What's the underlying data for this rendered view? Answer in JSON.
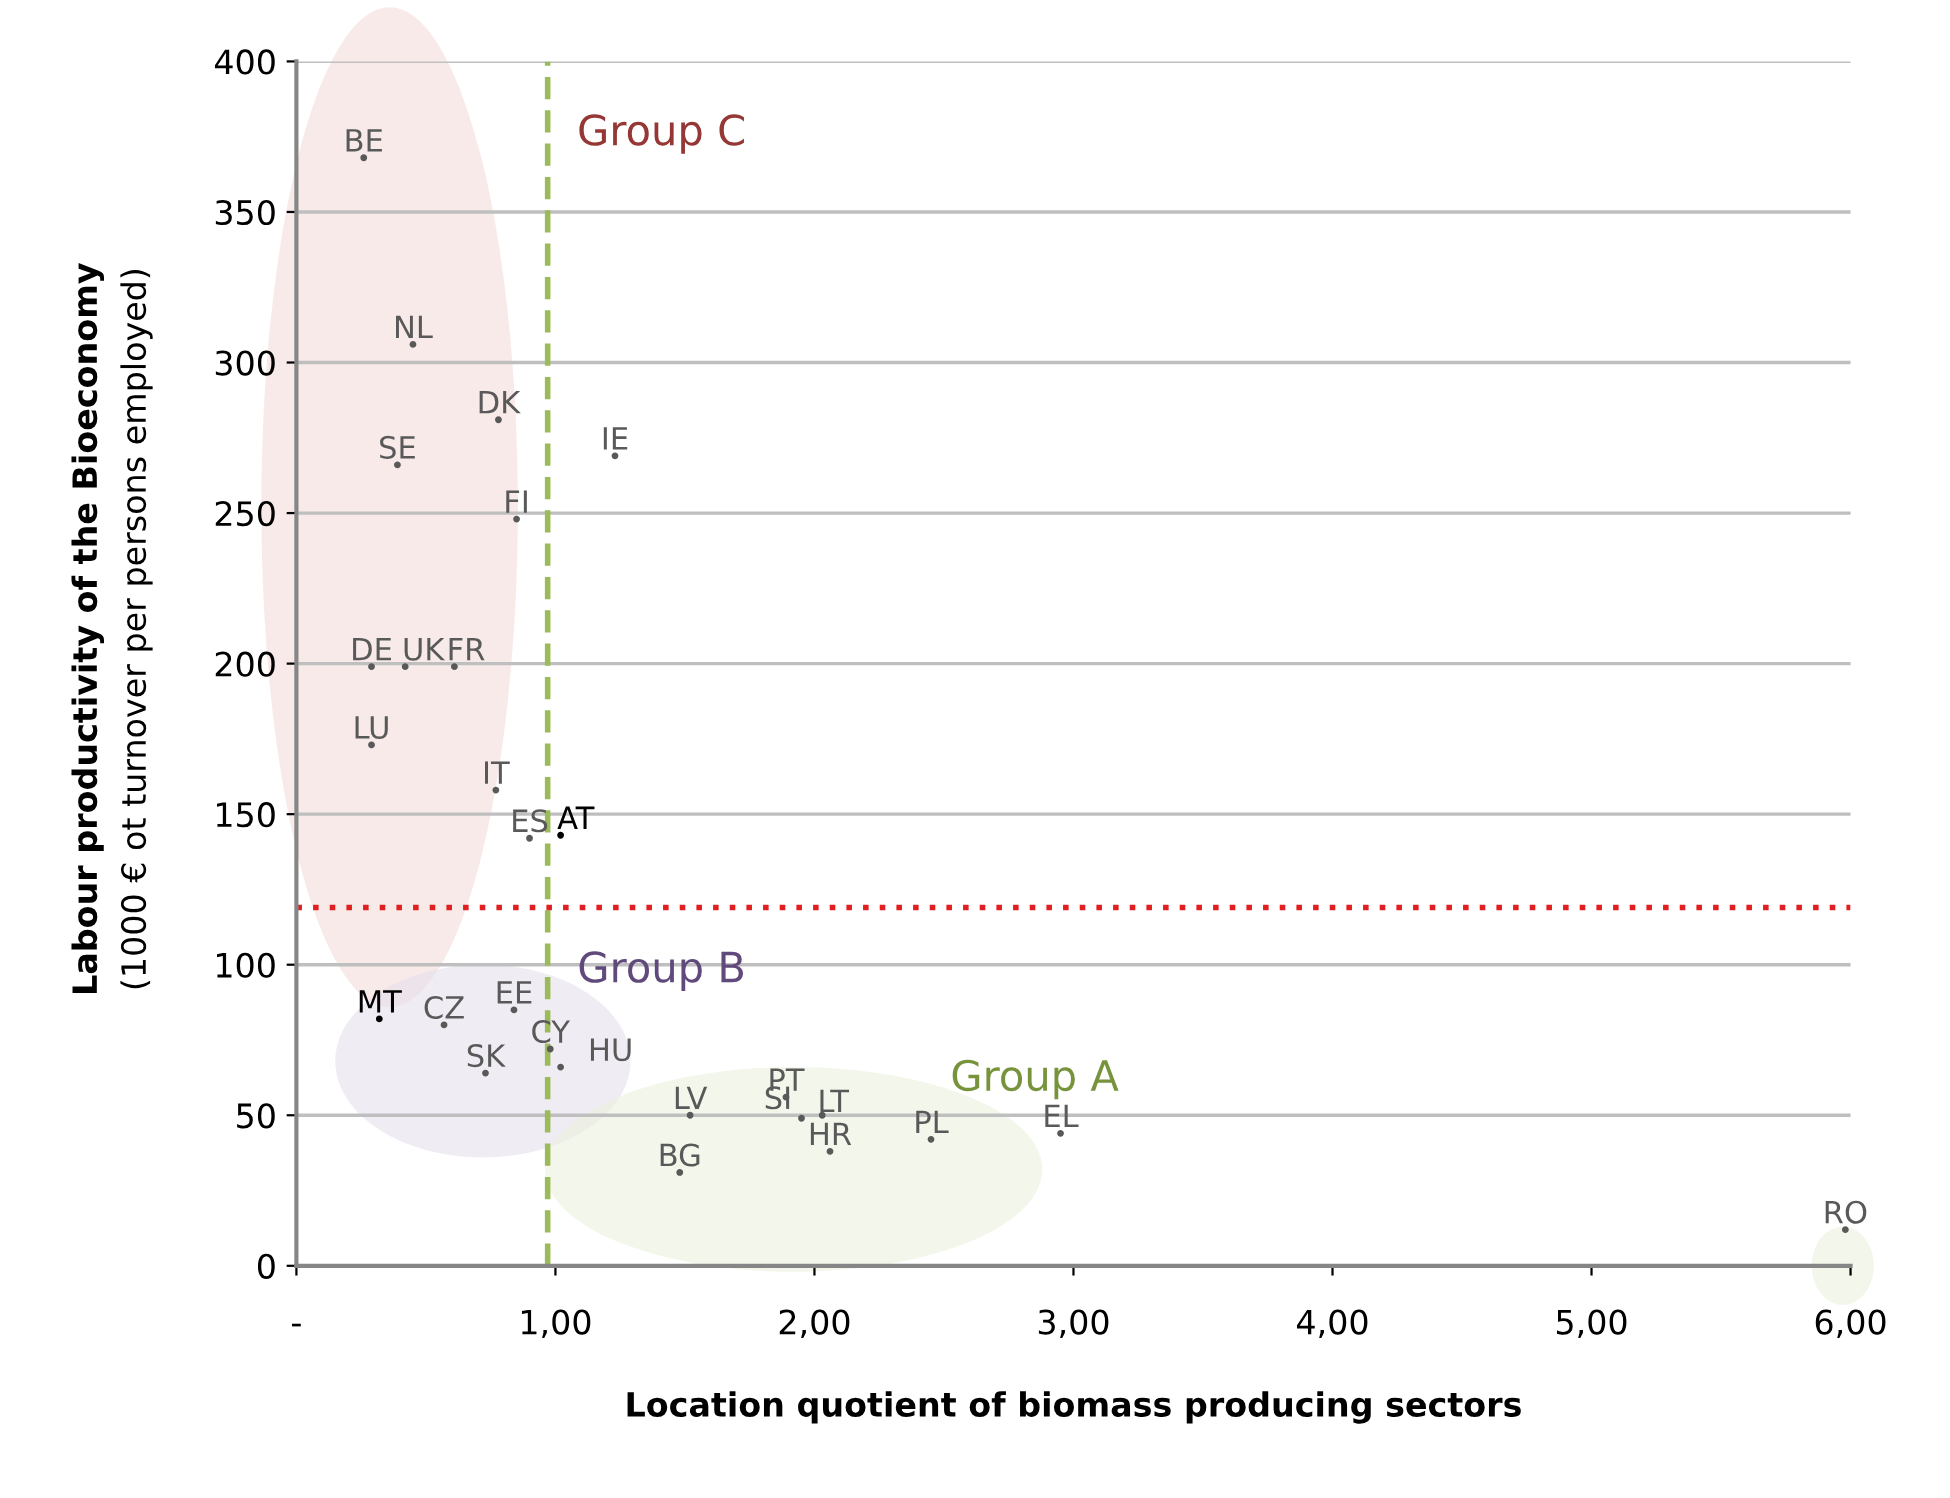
{
  "chart_data": {
    "type": "scatter",
    "xlabel": "Location quotient of biomass producing sectors",
    "ylabel": "Labour productivity of the Bioeconomy\n(1000 € ot turnover per persons employed)",
    "xlim": [
      0,
      6
    ],
    "ylim": [
      0,
      400
    ],
    "xticks": [
      {
        "value": 0,
        "label": "-"
      },
      {
        "value": 1,
        "label": "1,00"
      },
      {
        "value": 2,
        "label": "2,00"
      },
      {
        "value": 3,
        "label": "3,00"
      },
      {
        "value": 4,
        "label": "4,00"
      },
      {
        "value": 5,
        "label": "5,00"
      },
      {
        "value": 6,
        "label": "6,00"
      }
    ],
    "yticks": [
      0,
      50,
      100,
      150,
      200,
      250,
      300,
      350,
      400
    ],
    "grid": "y",
    "marker": "circle",
    "legend": false,
    "series": [
      {
        "x": [
          0.26,
          0.45,
          0.78,
          0.39,
          1.23,
          0.85,
          0.29,
          0.42,
          0.61,
          0.29,
          0.77,
          0.9,
          1.02,
          0.32,
          0.57,
          0.84,
          0.98,
          0.73,
          1.02,
          1.52,
          1.48,
          1.89,
          1.95,
          2.03,
          2.06,
          2.45,
          2.95,
          5.98
        ],
        "values": [
          368,
          306,
          281,
          266,
          269,
          248,
          199,
          199,
          199,
          173,
          158,
          142,
          143,
          82,
          80,
          85,
          72,
          64,
          66,
          50,
          31,
          56,
          49,
          50,
          38,
          42,
          44,
          12
        ],
        "value_labels": [
          "BE",
          "NL",
          "DK",
          "SE",
          "IE",
          "FI",
          "DE",
          "UK",
          "FR",
          "LU",
          "IT",
          "ES",
          "AT",
          "MT",
          "CZ",
          "EE",
          "CY",
          "SK",
          "HU",
          "LV",
          "BG",
          "PT",
          "LT",
          "SI",
          "HR",
          "PL",
          "EL",
          "RO"
        ],
        "colors": [
          "#595959",
          "#595959",
          "#595959",
          "#595959",
          "#595959",
          "#595959",
          "#595959",
          "#595959",
          "#595959",
          "#595959",
          "#595959",
          "#595959",
          "#000000",
          "#000000",
          "#595959",
          "#595959",
          "#595959",
          "#595959",
          "#595959",
          "#595959",
          "#595959",
          "#595959",
          "#595959",
          "#595959",
          "#595959",
          "#595959",
          "#595959",
          "#595959"
        ]
      }
    ],
    "ref_lines": [
      {
        "axis": "x",
        "value": 0.97,
        "color": "#9bbb59",
        "line_style": "dashed"
      },
      {
        "axis": "y",
        "value": 119,
        "color": "#e02020",
        "line_style": "dotted"
      }
    ],
    "annotations": [
      "Group C",
      "Group B",
      "Group A"
    ]
  }
}
